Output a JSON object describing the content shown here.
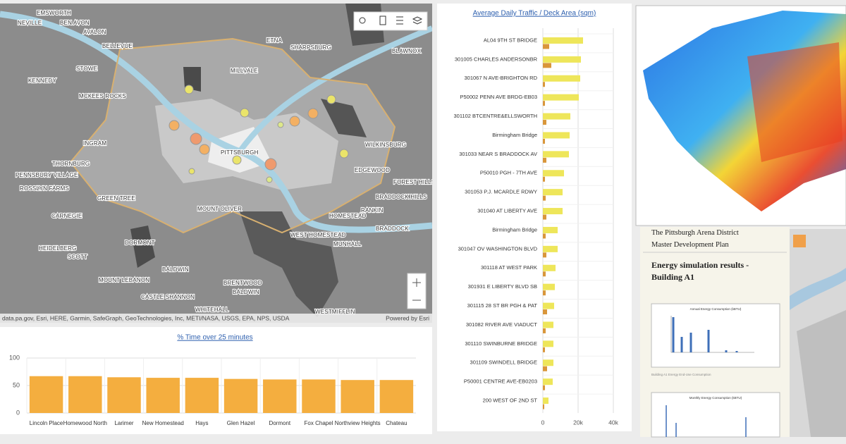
{
  "map": {
    "places": [
      "EMSWORTH",
      "NEVILLE",
      "BEN AVON",
      "AVALON",
      "BELLEVUE",
      "STOWE",
      "KENNEDY",
      "MCKEES ROCKS",
      "INGRAM",
      "THORNBURG",
      "PENNSBURY VILLAGE",
      "ROSSLYN FARMS",
      "CARNEGIE",
      "GREEN TREE",
      "HEIDELBERG",
      "SCOTT",
      "MOUNT LEBANON",
      "CASTLE SHANNON",
      "BALDWIN",
      "WHITEHALL",
      "BRENTWOOD",
      "MOUNT OLIVER",
      "WEST HOMESTEAD",
      "HOMESTEAD",
      "MUNHALL",
      "PITTSBURGH",
      "MILLVALE",
      "ETNA",
      "SHARPSBURG",
      "BLAWNOX",
      "WILKINSBURG",
      "EDGEWOOD",
      "FOREST HILLS",
      "BRADDOCK HILLS",
      "RANKIN",
      "BRADDOCK",
      "DORMONT",
      "BALDWIN",
      "WESTMIFFLIN"
    ],
    "attribution": "data.pa.gov, Esri, HERE, Garmin, SafeGraph, GeoTechnologies, Inc, METI/NASA, USGS, EPA, NPS, USDA",
    "powered_by": "Powered by Esri"
  },
  "chart_data": [
    {
      "type": "bar",
      "title": "% Time over 25 minutes",
      "categories": [
        "Lincoln Place",
        "Homewood North",
        "Larimer",
        "New Homestead",
        "Hays",
        "Glen Hazel",
        "Dormont",
        "Fox Chapel",
        "Northview Heights",
        "Chateau"
      ],
      "values": [
        67,
        67,
        65,
        64,
        64,
        62,
        61,
        61,
        60,
        60
      ],
      "color": "#f4ae3f",
      "ylim": [
        0,
        100
      ],
      "yticks": [
        0,
        50,
        100
      ],
      "grid": true
    },
    {
      "type": "hbar",
      "title": "Average Daily Traffic / Deck Area (sqm)",
      "categories": [
        "AL04 9TH ST BRIDGE",
        "301005 CHARLES ANDERSONBR",
        "301067 N AVE-BRIGHTON RD",
        "P50002 PENN AVE BRDG-EB03",
        "301102 BTCENTRE&ELLSWORTH",
        "Birmingham Bridge",
        "301033 NEAR S BRADDOCK AV",
        "P50010 PGH - 7TH AVE",
        "301053 P.J. MCARDLE RDWY",
        "301040 AT LIBERTY AVE",
        "Birmingham Bridge",
        "301047 OV WASHINGTON BLVD",
        "301118 AT WEST PARK",
        "301931 E LIBERTY BLVD SB",
        "301115 28 ST BR PGH & PAT",
        "301082 RIVER AVE VIADUCT",
        "301110 SWINBURNE BRIDGE",
        "301109 SWINDELL BRIDGE",
        "P50001 CENTRE AVE-EB0203",
        "200 WEST OF 2ND ST"
      ],
      "series": [
        {
          "color": "#eee65a",
          "values": [
            22800,
            21600,
            21200,
            20400,
            15600,
            15200,
            14800,
            12000,
            11200,
            11200,
            8400,
            8400,
            7200,
            6800,
            6400,
            6000,
            6000,
            6000,
            5600,
            3200
          ]
        },
        {
          "color": "#d9963a",
          "values": [
            3600,
            4800,
            1200,
            1200,
            2000,
            1200,
            2000,
            1200,
            1600,
            2000,
            1600,
            2000,
            1600,
            1600,
            2400,
            1600,
            1200,
            2400,
            1200,
            800
          ]
        }
      ],
      "xlim": [
        0,
        40000
      ],
      "xticks": [
        0,
        {
          "value": 20000,
          "label": "20k"
        },
        {
          "value": 40000,
          "label": "40k"
        }
      ],
      "grid": true
    }
  ],
  "document": {
    "title": "The Pittsburgh Arena District Master Development Plan",
    "heading": "Energy simulation results - Building A1",
    "figure1_title": "Annual Energy Consumption (kBTU)",
    "figure1_caption": "Building A1 Energy End-Use Consumption",
    "figure2_title": "Monthly Energy Consumption (kBTU)"
  }
}
